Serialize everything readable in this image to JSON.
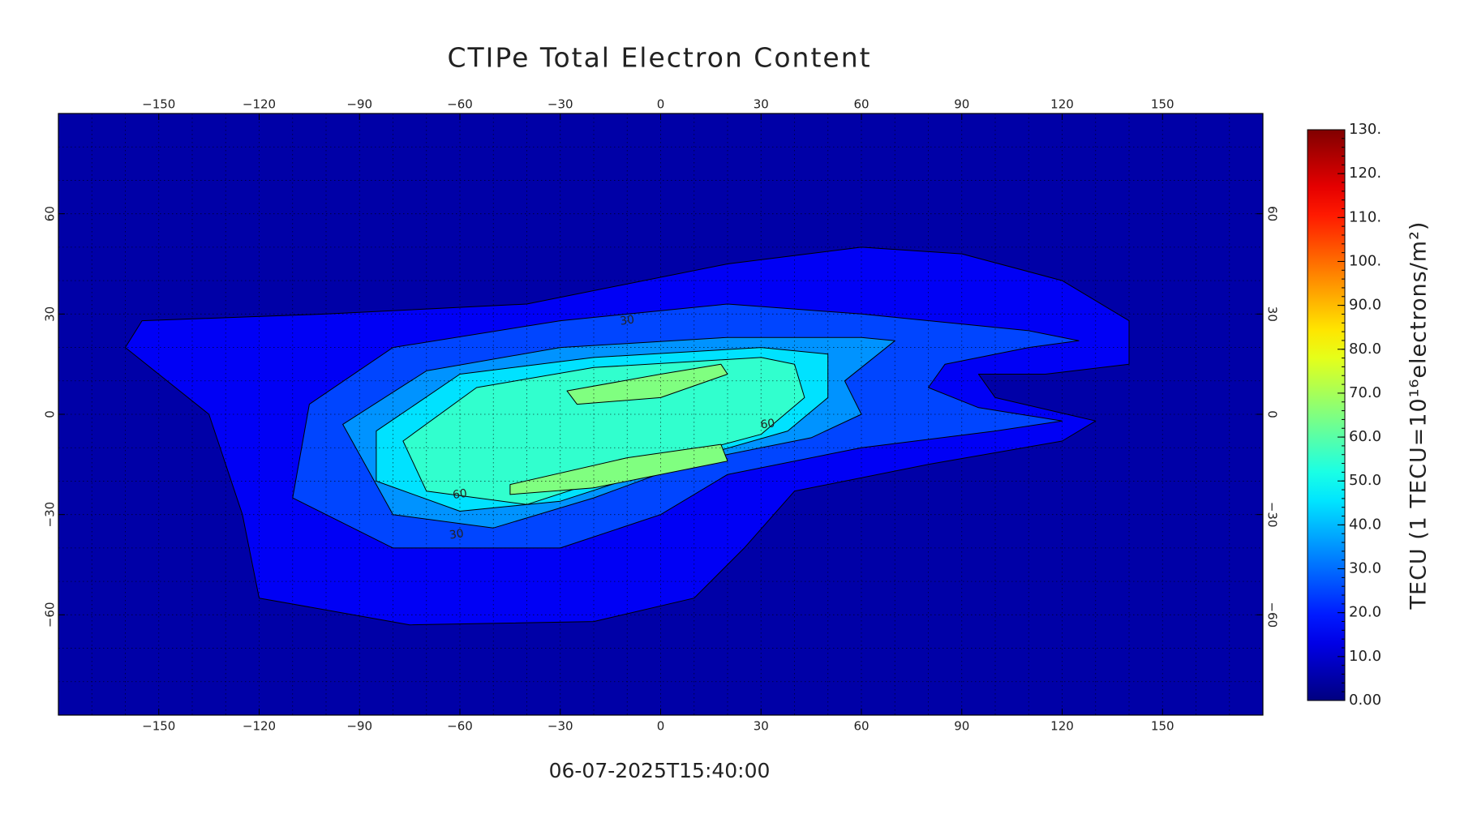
{
  "chart_data": {
    "type": "contour",
    "title": "CTIPe Total Electron Content",
    "subtitle": "06-07-2025T15:40:00",
    "xlim": [
      -180,
      180
    ],
    "ylim": [
      -90,
      90
    ],
    "xticks": [
      {
        "value": -150,
        "label": "−150"
      },
      {
        "value": -120,
        "label": "−120"
      },
      {
        "value": -90,
        "label": "−90"
      },
      {
        "value": -60,
        "label": "−60"
      },
      {
        "value": -30,
        "label": "−30"
      },
      0,
      30,
      60,
      90,
      120,
      150
    ],
    "yticks": [
      {
        "value": -60,
        "label": "−60"
      },
      {
        "value": -30,
        "label": "−30"
      },
      0,
      30,
      60
    ],
    "contour_levels": [
      0,
      10,
      20,
      30,
      40,
      50,
      60
    ],
    "contour_labels": [
      30,
      60,
      60,
      30
    ],
    "colorbar": {
      "label": "TECU (1 TECU=10¹⁶electrons/m²)",
      "lim": [
        0,
        130
      ],
      "ticks": [
        {
          "value": 0,
          "label": "0.00"
        },
        {
          "value": 10,
          "label": "10.0"
        },
        {
          "value": 20,
          "label": "20.0"
        },
        {
          "value": 30,
          "label": "30.0"
        },
        {
          "value": 40,
          "label": "40.0"
        },
        {
          "value": 50,
          "label": "50.0"
        },
        {
          "value": 60,
          "label": "60.0"
        },
        {
          "value": 70,
          "label": "70.0"
        },
        {
          "value": 80,
          "label": "80.0"
        },
        {
          "value": 90,
          "label": "90.0"
        },
        {
          "value": 100,
          "label": "100."
        },
        {
          "value": 110,
          "label": "110."
        },
        {
          "value": 120,
          "label": "120."
        },
        {
          "value": 130,
          "label": "130."
        }
      ]
    }
  }
}
